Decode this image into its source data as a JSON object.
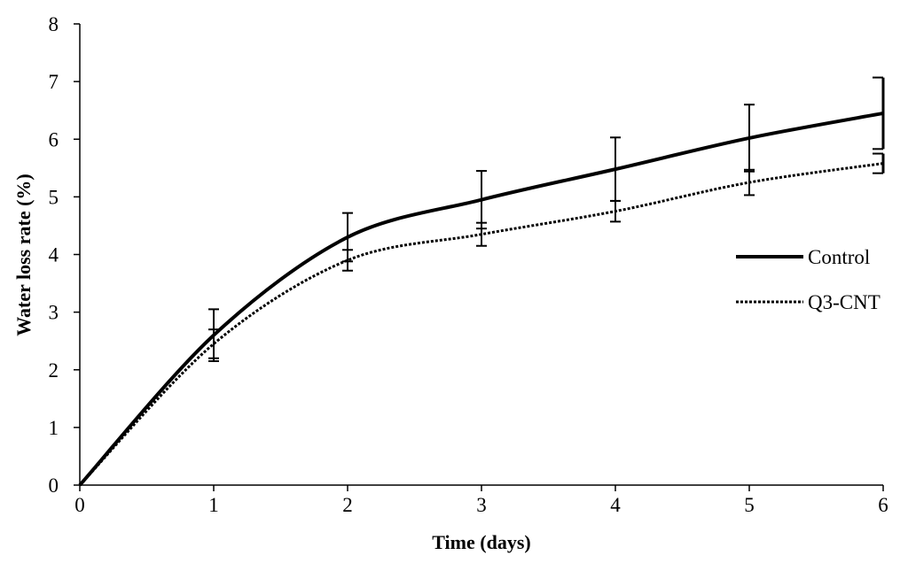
{
  "chart_data": {
    "type": "line",
    "title": "",
    "xlabel": "Time (days)",
    "ylabel": "Water loss rate (%)",
    "xlim": [
      0,
      6
    ],
    "ylim": [
      0,
      8
    ],
    "x": [
      0,
      1,
      2,
      3,
      4,
      5,
      6
    ],
    "xticks": [
      "0",
      "1",
      "2",
      "3",
      "4",
      "5",
      "6"
    ],
    "yticks": [
      "0",
      "1",
      "2",
      "3",
      "4",
      "5",
      "6",
      "7",
      "8"
    ],
    "grid": false,
    "legend_position": "right",
    "series": [
      {
        "name": "Control",
        "style": "solid",
        "color": "#000000",
        "values": [
          0,
          2.6,
          4.3,
          4.95,
          5.48,
          6.02,
          6.45
        ],
        "errors": [
          0,
          0.45,
          0.42,
          0.5,
          0.55,
          0.58,
          0.62
        ]
      },
      {
        "name": "Q3-CNT",
        "style": "dotted",
        "color": "#000000",
        "values": [
          0,
          2.45,
          3.9,
          4.35,
          4.75,
          5.25,
          5.58
        ],
        "errors": [
          0,
          0.25,
          0.18,
          0.2,
          0.18,
          0.22,
          0.17
        ]
      }
    ]
  }
}
